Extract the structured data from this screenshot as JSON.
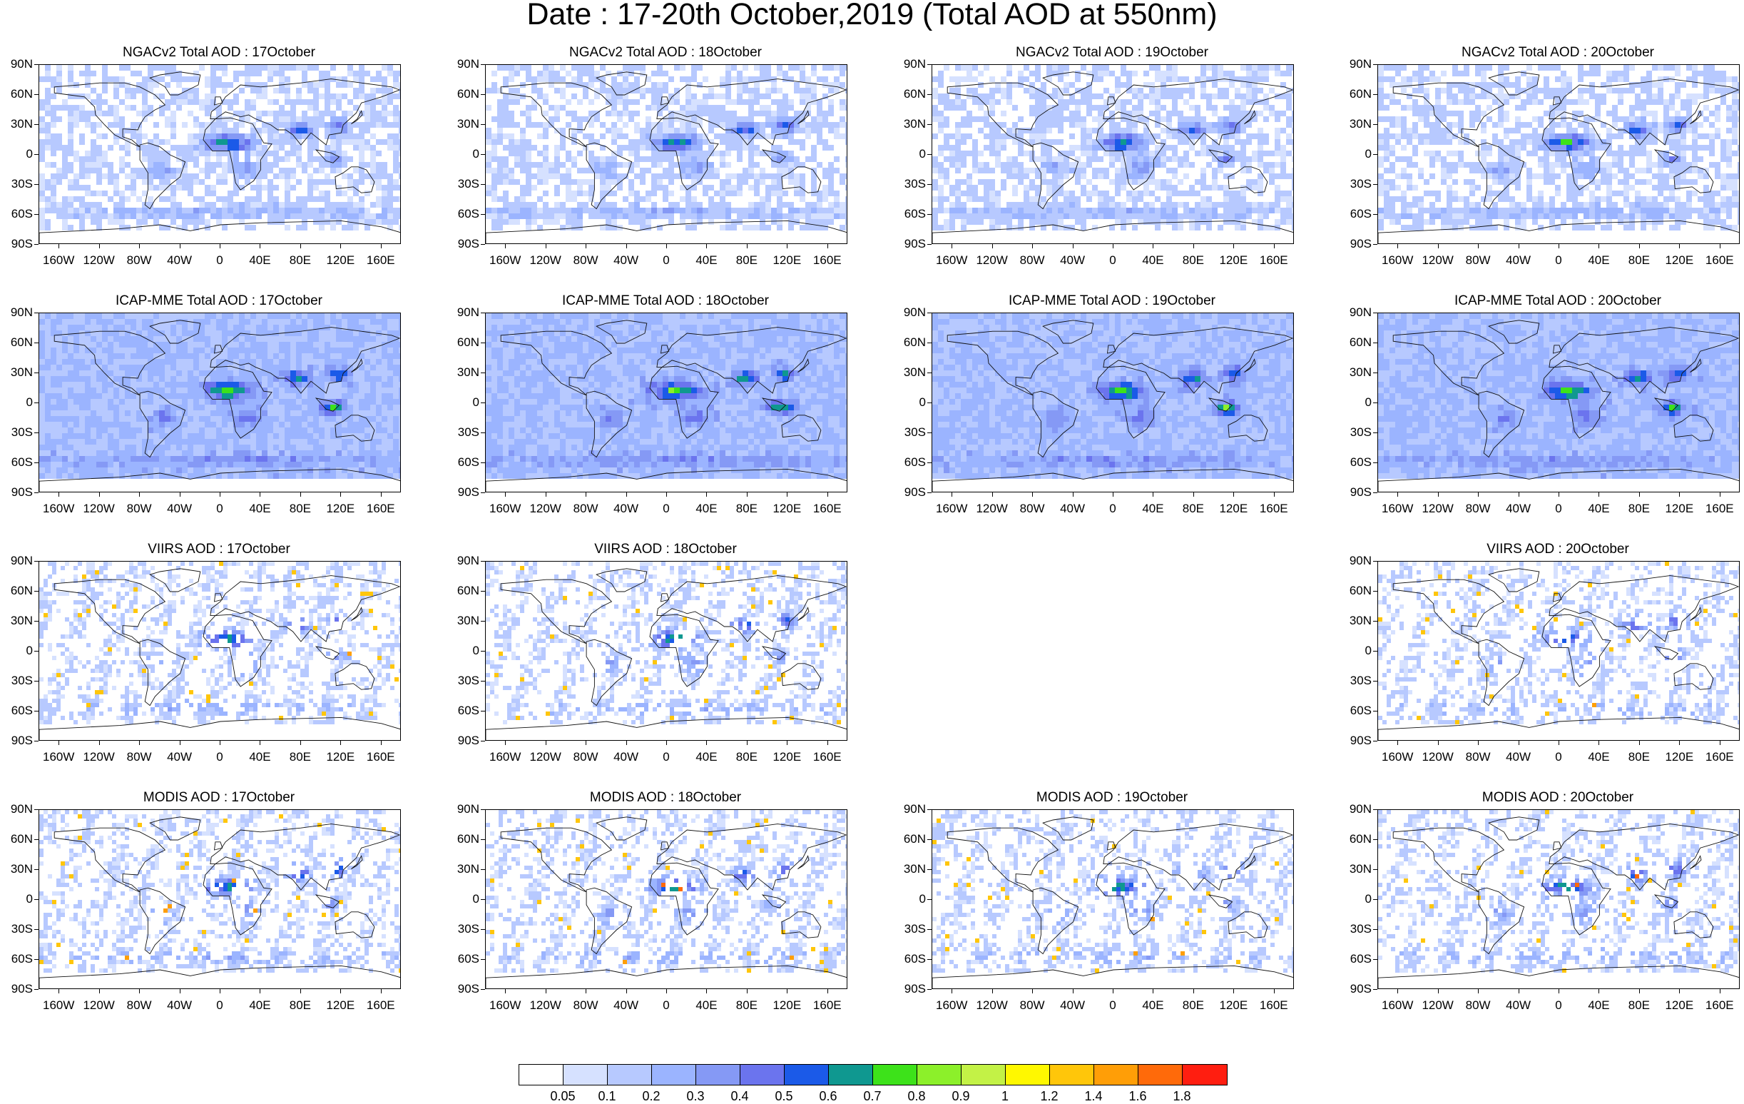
{
  "title": "Date : 17-20th October,2019 (Total AOD at 550nm)",
  "lat_labels": [
    "90N",
    "60N",
    "30N",
    "0",
    "30S",
    "60S",
    "90S"
  ],
  "lon_labels": [
    "160W",
    "120W",
    "80W",
    "40W",
    "0",
    "40E",
    "80E",
    "120E",
    "160E"
  ],
  "panels": [
    {
      "id": "ngac-17",
      "row": 0,
      "col": 0,
      "title": "NGACv2 Total AOD : 17October",
      "source": "NGACv2"
    },
    {
      "id": "ngac-18",
      "row": 0,
      "col": 1,
      "title": "NGACv2 Total AOD : 18October",
      "source": "NGACv2"
    },
    {
      "id": "ngac-19",
      "row": 0,
      "col": 2,
      "title": "NGACv2 Total AOD : 19October",
      "source": "NGACv2"
    },
    {
      "id": "ngac-20",
      "row": 0,
      "col": 3,
      "title": "NGACv2 Total AOD : 20October",
      "source": "NGACv2"
    },
    {
      "id": "icap-17",
      "row": 1,
      "col": 0,
      "title": "ICAP-MME Total AOD : 17October",
      "source": "ICAP"
    },
    {
      "id": "icap-18",
      "row": 1,
      "col": 1,
      "title": "ICAP-MME Total AOD : 18October",
      "source": "ICAP"
    },
    {
      "id": "icap-19",
      "row": 1,
      "col": 2,
      "title": "ICAP-MME Total AOD : 19October",
      "source": "ICAP"
    },
    {
      "id": "icap-20",
      "row": 1,
      "col": 3,
      "title": "ICAP-MME Total AOD : 20October",
      "source": "ICAP"
    },
    {
      "id": "viirs-17",
      "row": 2,
      "col": 0,
      "title": "VIIRS AOD : 17October",
      "source": "VIIRS"
    },
    {
      "id": "viirs-18",
      "row": 2,
      "col": 1,
      "title": "VIIRS AOD : 18October",
      "source": "VIIRS"
    },
    {
      "id": "viirs-20",
      "row": 2,
      "col": 3,
      "title": "VIIRS AOD : 20October",
      "source": "VIIRS"
    },
    {
      "id": "modis-17",
      "row": 3,
      "col": 0,
      "title": "MODIS AOD : 17October",
      "source": "MODIS"
    },
    {
      "id": "modis-18",
      "row": 3,
      "col": 1,
      "title": "MODIS AOD : 18October",
      "source": "MODIS"
    },
    {
      "id": "modis-19",
      "row": 3,
      "col": 2,
      "title": "MODIS AOD : 19October",
      "source": "MODIS"
    },
    {
      "id": "modis-20",
      "row": 3,
      "col": 3,
      "title": "MODIS AOD : 20October",
      "source": "MODIS"
    }
  ],
  "colorbar": {
    "labels": [
      "0.05",
      "0.1",
      "0.2",
      "0.3",
      "0.4",
      "0.5",
      "0.6",
      "0.7",
      "0.8",
      "0.9",
      "1",
      "1.2",
      "1.4",
      "1.6",
      "1.8"
    ],
    "colors": [
      "#ffffff",
      "#d6e1ff",
      "#b7c9ff",
      "#9bb4ff",
      "#8599f5",
      "#6b74ee",
      "#1b5ae8",
      "#0f9890",
      "#3de21a",
      "#8cf02a",
      "#c3f246",
      "#fff800",
      "#ffc60a",
      "#ff9e07",
      "#ff6a0a",
      "#ff1e10"
    ]
  }
}
